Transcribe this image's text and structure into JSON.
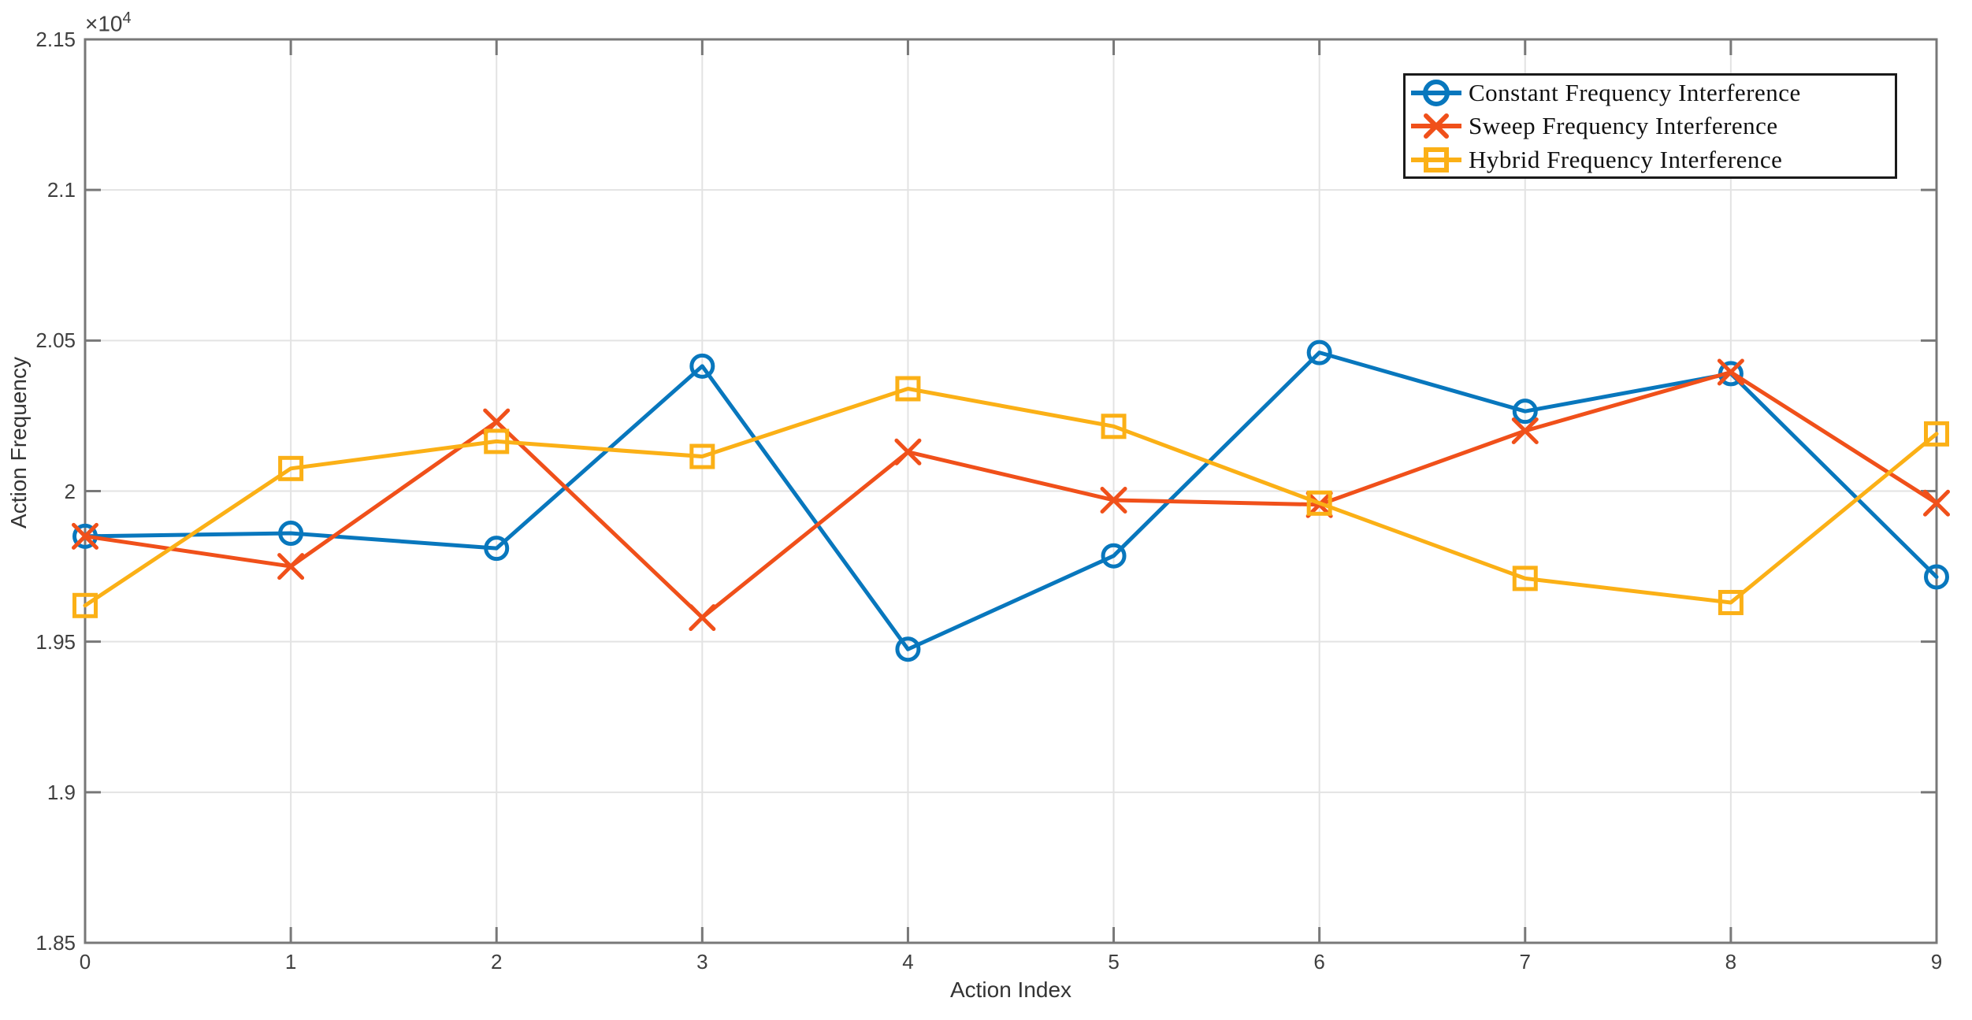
{
  "chart_data": {
    "type": "line",
    "title": "",
    "xlabel": "Action Index",
    "ylabel": "Action Frequency",
    "y_axis_multiplier_base": "×10",
    "y_axis_multiplier_exponent": "4",
    "xlim": [
      0,
      9
    ],
    "ylim": [
      18500,
      21500
    ],
    "x": [
      0,
      1,
      2,
      3,
      4,
      5,
      6,
      7,
      8,
      9
    ],
    "x_ticks": [
      0,
      1,
      2,
      3,
      4,
      5,
      6,
      7,
      8,
      9
    ],
    "x_tick_labels": [
      "0",
      "1",
      "2",
      "3",
      "4",
      "5",
      "6",
      "7",
      "8",
      "9"
    ],
    "y_ticks": [
      18500,
      19000,
      19500,
      20000,
      20500,
      21000,
      21500
    ],
    "y_tick_labels": [
      "1.85",
      "1.9",
      "1.95",
      "2",
      "2.05",
      "2.1",
      "2.15"
    ],
    "grid": true,
    "legend_position": "top-right",
    "series": [
      {
        "name": "Constant Frequency Interference",
        "color": "#0877BD",
        "marker": "circle",
        "values": [
          19850,
          19860,
          19810,
          20415,
          19475,
          19785,
          20460,
          20265,
          20390,
          19715
        ]
      },
      {
        "name": "Sweep Frequency Interference",
        "color": "#F0501A",
        "marker": "x",
        "values": [
          19850,
          19750,
          20230,
          19580,
          20130,
          19970,
          19955,
          20200,
          20395,
          19960
        ]
      },
      {
        "name": "Hybrid Frequency Interference",
        "color": "#FBB016",
        "marker": "square",
        "values": [
          19620,
          20075,
          20165,
          20115,
          20340,
          20215,
          19960,
          19710,
          19630,
          20190
        ]
      }
    ],
    "colors": {
      "grid": "#E3E3E3",
      "axis_box": "#787878",
      "tick_text": "#3F3F3F",
      "legend_border": "#1A1A1A"
    }
  }
}
